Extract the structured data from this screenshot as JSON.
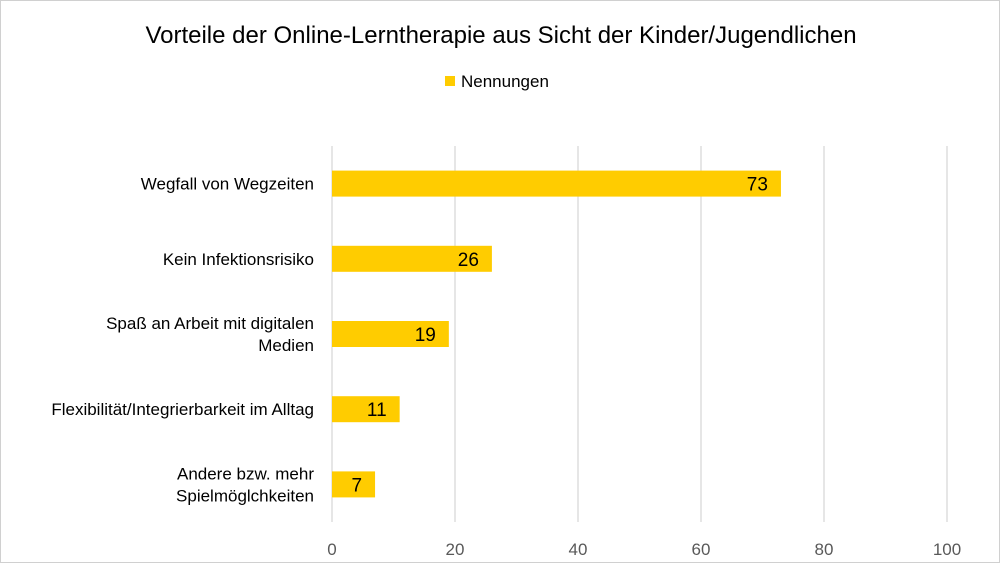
{
  "chart_data": {
    "type": "bar",
    "orientation": "horizontal",
    "title": "Vorteile der Online-Lerntherapie aus Sicht der Kinder/Jugendlichen",
    "legend": {
      "position": "top",
      "entries": [
        "Nennungen"
      ]
    },
    "categories": [
      [
        "Wegfall von Wegzeiten"
      ],
      [
        "Kein Infektionsrisiko"
      ],
      [
        "Spaß an Arbeit mit digitalen",
        "Medien"
      ],
      [
        "Flexibilität/Integrierbarkeit im Alltag"
      ],
      [
        "Andere bzw. mehr",
        "Spielmöglchkeiten"
      ]
    ],
    "series": [
      {
        "name": "Nennungen",
        "values": [
          73,
          26,
          19,
          11,
          7
        ],
        "color": "#FFCC00"
      }
    ],
    "xlim": [
      0,
      100
    ],
    "xticks": [
      "0",
      "20",
      "40",
      "60",
      "80",
      "100"
    ],
    "grid": true,
    "data_labels": true
  }
}
